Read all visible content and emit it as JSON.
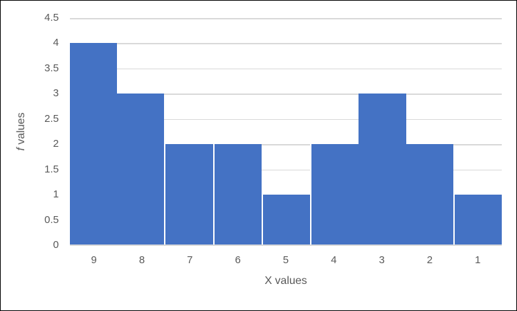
{
  "chart_data": {
    "type": "bar",
    "categories": [
      "9",
      "8",
      "7",
      "6",
      "5",
      "4",
      "3",
      "2",
      "1"
    ],
    "values": [
      4,
      3,
      2,
      2,
      1,
      2,
      3,
      2,
      1
    ],
    "xlabel": "X values",
    "ylabel": "f values",
    "ylabel_italic_prefix": "f",
    "ylabel_rest": " values",
    "ylim": [
      0,
      4.5
    ],
    "yticks": [
      0,
      0.5,
      1,
      1.5,
      2,
      2.5,
      3,
      3.5,
      4,
      4.5
    ],
    "ytick_labels": [
      "0",
      "0.5",
      "1",
      "1.5",
      "2",
      "2.5",
      "3",
      "3.5",
      "4",
      "4.5"
    ],
    "grid": true,
    "legend_position": "none",
    "bar_gap": 0,
    "white_separator_left_on_bar_indices": [
      2,
      3,
      4,
      5,
      8
    ]
  },
  "colors": {
    "bar": "#4472C4",
    "gridline": "#D9D9D9",
    "axis_line": "#D9D9D9",
    "text": "#595959",
    "background": "#FFFFFF",
    "frame_border": "#000000"
  }
}
